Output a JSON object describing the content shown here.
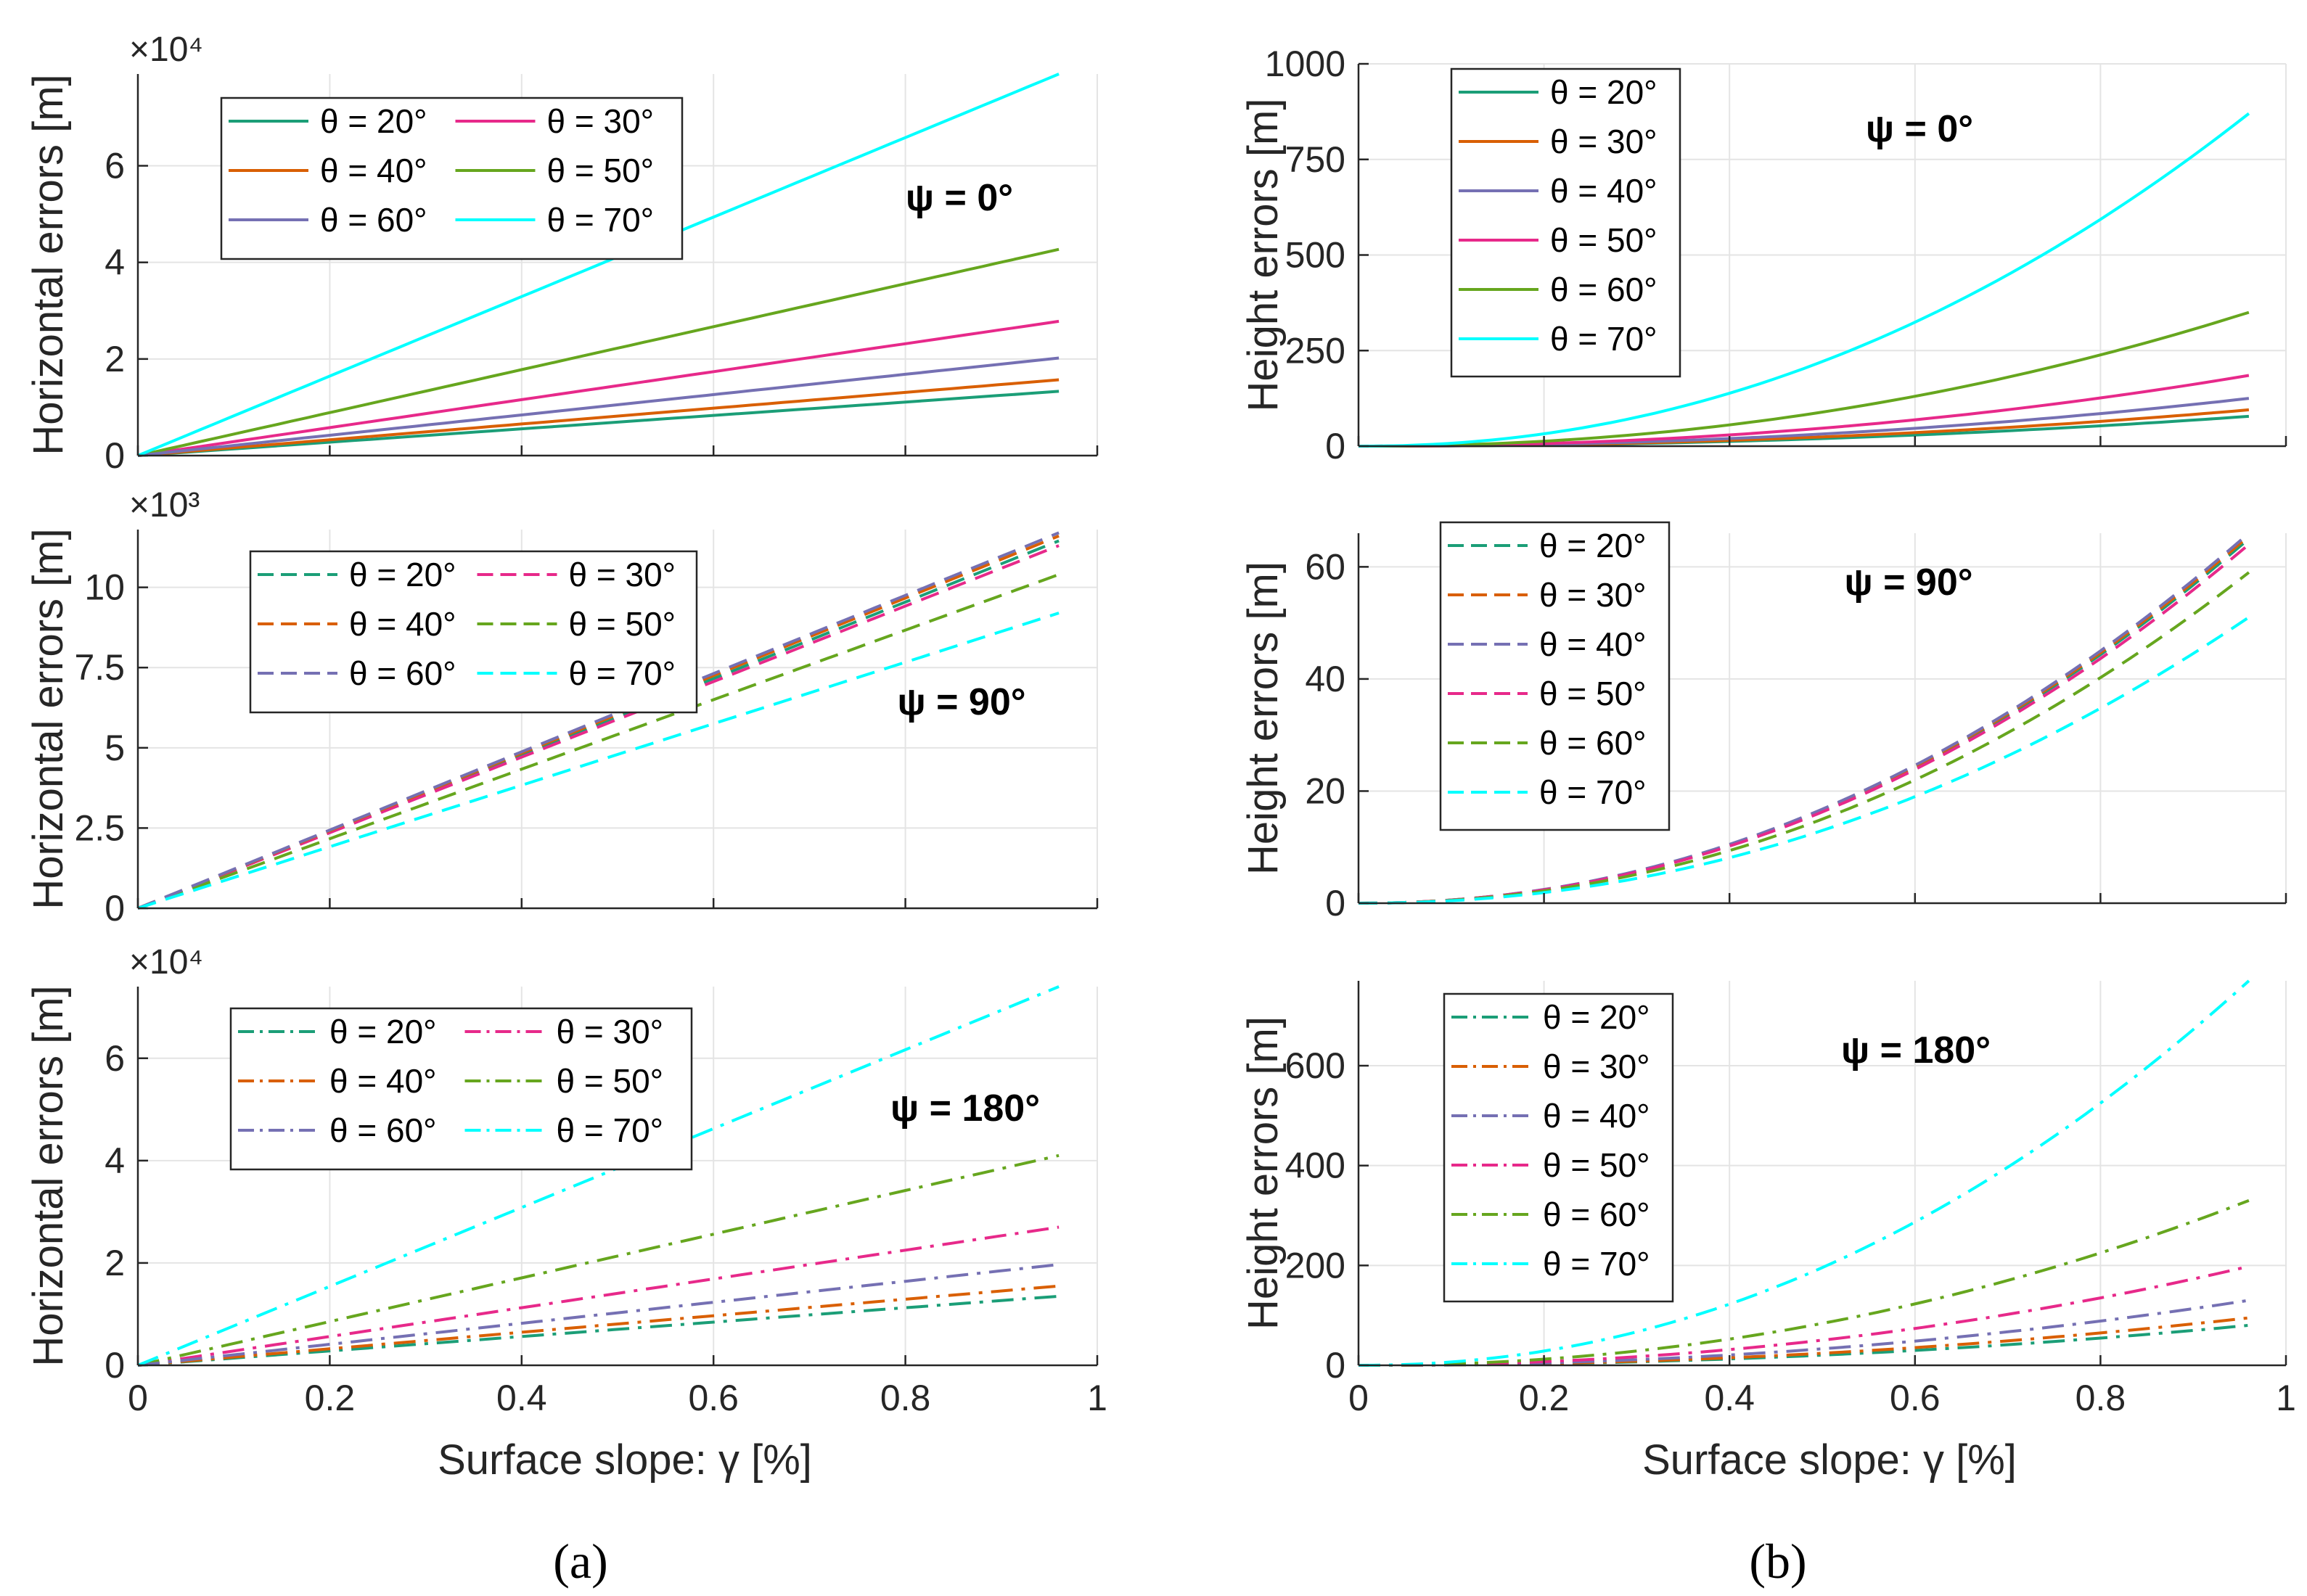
{
  "panel_labels": {
    "a": "(a)",
    "b": "(b)"
  },
  "chart_data": [
    {
      "id": "a-psi0",
      "type": "line",
      "line_style": "solid",
      "annotation": "ψ = 0°",
      "ylabel": "Horizontal errors [m]",
      "xlabel": "",
      "multiplier_label": "×10⁴",
      "xlim": [
        0,
        1
      ],
      "ylim": [
        0,
        7.9
      ],
      "xticks": [
        0,
        0.2,
        0.4,
        0.6,
        0.8,
        1
      ],
      "xtick_labels": [
        "",
        "",
        "",
        "",
        "",
        ""
      ],
      "yticks": [
        0,
        2,
        4,
        6
      ],
      "ytick_labels": [
        "0",
        "2",
        "4",
        "6"
      ],
      "grid": true,
      "legend_cols": 2,
      "series": [
        {
          "name": "θ = 20°",
          "color": "#1b9e77",
          "endpoint": [
            0.96,
            1.33
          ],
          "curve": "linear"
        },
        {
          "name": "θ = 30°",
          "color": "#e7298a",
          "endpoint": [
            0.96,
            2.78
          ],
          "curve": "linear"
        },
        {
          "name": "θ = 40°",
          "color": "#d95f02",
          "endpoint": [
            0.96,
            1.57
          ],
          "curve": "linear"
        },
        {
          "name": "θ = 50°",
          "color": "#66a61e",
          "endpoint": [
            0.96,
            4.27
          ],
          "curve": "linear"
        },
        {
          "name": "θ = 60°",
          "color": "#7570b3",
          "endpoint": [
            0.96,
            2.02
          ],
          "curve": "linear"
        },
        {
          "name": "θ = 70°",
          "color": "#00ffff",
          "endpoint": [
            0.96,
            7.9
          ],
          "curve": "linear"
        }
      ]
    },
    {
      "id": "b-psi0",
      "type": "line",
      "line_style": "solid",
      "annotation": "ψ = 0°",
      "ylabel": "Height errors [m]",
      "xlabel": "",
      "multiplier_label": "",
      "xlim": [
        0,
        1
      ],
      "ylim": [
        0,
        1000
      ],
      "xticks": [
        0,
        0.2,
        0.4,
        0.6,
        0.8,
        1
      ],
      "xtick_labels": [
        "",
        "",
        "",
        "",
        "",
        ""
      ],
      "yticks": [
        0,
        250,
        500,
        750,
        1000
      ],
      "ytick_labels": [
        "0",
        "250",
        "500",
        "750",
        "1000"
      ],
      "grid": true,
      "legend_cols": 1,
      "series": [
        {
          "name": "θ = 20°",
          "color": "#1b9e77",
          "endpoint": [
            0.96,
            78
          ],
          "curve": "quadratic"
        },
        {
          "name": "θ = 30°",
          "color": "#d95f02",
          "endpoint": [
            0.96,
            95
          ],
          "curve": "quadratic"
        },
        {
          "name": "θ = 40°",
          "color": "#7570b3",
          "endpoint": [
            0.96,
            125
          ],
          "curve": "quadratic"
        },
        {
          "name": "θ = 50°",
          "color": "#e7298a",
          "endpoint": [
            0.96,
            185
          ],
          "curve": "quadratic"
        },
        {
          "name": "θ = 60°",
          "color": "#66a61e",
          "endpoint": [
            0.96,
            350
          ],
          "curve": "quadratic"
        },
        {
          "name": "θ = 70°",
          "color": "#00ffff",
          "endpoint": [
            0.96,
            870
          ],
          "curve": "quadratic"
        }
      ]
    },
    {
      "id": "a-psi90",
      "type": "line",
      "line_style": "dashed",
      "annotation": "ψ = 90°",
      "ylabel": "Horizontal errors [m]",
      "xlabel": "",
      "multiplier_label": "×10³",
      "xlim": [
        0,
        1
      ],
      "ylim": [
        0,
        11.8
      ],
      "xticks": [
        0,
        0.2,
        0.4,
        0.6,
        0.8,
        1
      ],
      "xtick_labels": [
        "",
        "",
        "",
        "",
        "",
        ""
      ],
      "yticks": [
        0,
        2.5,
        5,
        7.5,
        10
      ],
      "ytick_labels": [
        "0",
        "2.5",
        "5",
        "7.5",
        "10"
      ],
      "grid": true,
      "legend_cols": 2,
      "series": [
        {
          "name": "θ = 20°",
          "color": "#1b9e77",
          "endpoint": [
            0.96,
            11.45
          ],
          "curve": "linear"
        },
        {
          "name": "θ = 30°",
          "color": "#e7298a",
          "endpoint": [
            0.96,
            11.3
          ],
          "curve": "linear"
        },
        {
          "name": "θ = 40°",
          "color": "#d95f02",
          "endpoint": [
            0.96,
            11.6
          ],
          "curve": "linear"
        },
        {
          "name": "θ = 50°",
          "color": "#66a61e",
          "endpoint": [
            0.96,
            10.4
          ],
          "curve": "linear"
        },
        {
          "name": "θ = 60°",
          "color": "#7570b3",
          "endpoint": [
            0.96,
            11.7
          ],
          "curve": "linear"
        },
        {
          "name": "θ = 70°",
          "color": "#00ffff",
          "endpoint": [
            0.96,
            9.2
          ],
          "curve": "linear"
        }
      ]
    },
    {
      "id": "b-psi90",
      "type": "line",
      "line_style": "dashed",
      "annotation": "ψ = 90°",
      "ylabel": "Height errors [m]",
      "xlabel": "",
      "multiplier_label": "",
      "xlim": [
        0,
        1
      ],
      "ylim": [
        0,
        66
      ],
      "xticks": [
        0,
        0.2,
        0.4,
        0.6,
        0.8,
        1
      ],
      "xtick_labels": [
        "",
        "",
        "",
        "",
        "",
        ""
      ],
      "yticks": [
        0,
        20,
        40,
        60
      ],
      "ytick_labels": [
        "0",
        "20",
        "40",
        "60"
      ],
      "grid": true,
      "legend_cols": 1,
      "series": [
        {
          "name": "θ = 20°",
          "color": "#1b9e77",
          "endpoint": [
            0.96,
            65
          ],
          "curve": "quadratic"
        },
        {
          "name": "θ = 30°",
          "color": "#d95f02",
          "endpoint": [
            0.96,
            65.5
          ],
          "curve": "quadratic"
        },
        {
          "name": "θ = 40°",
          "color": "#7570b3",
          "endpoint": [
            0.96,
            66
          ],
          "curve": "quadratic"
        },
        {
          "name": "θ = 50°",
          "color": "#e7298a",
          "endpoint": [
            0.96,
            64
          ],
          "curve": "quadratic"
        },
        {
          "name": "θ = 60°",
          "color": "#66a61e",
          "endpoint": [
            0.96,
            59
          ],
          "curve": "quadratic"
        },
        {
          "name": "θ = 70°",
          "color": "#00ffff",
          "endpoint": [
            0.96,
            51
          ],
          "curve": "quadratic"
        }
      ]
    },
    {
      "id": "a-psi180",
      "type": "line",
      "line_style": "dashdot",
      "annotation": "ψ = 180°",
      "ylabel": "Horizontal errors [m]",
      "xlabel": "Surface slope: γ [%]",
      "multiplier_label": "×10⁴",
      "xlim": [
        0,
        1
      ],
      "ylim": [
        0,
        7.4
      ],
      "xticks": [
        0,
        0.2,
        0.4,
        0.6,
        0.8,
        1
      ],
      "xtick_labels": [
        "0",
        "0.2",
        "0.4",
        "0.6",
        "0.8",
        "1"
      ],
      "yticks": [
        0,
        2,
        4,
        6
      ],
      "ytick_labels": [
        "0",
        "2",
        "4",
        "6"
      ],
      "grid": true,
      "legend_cols": 2,
      "series": [
        {
          "name": "θ = 20°",
          "color": "#1b9e77",
          "endpoint": [
            0.96,
            1.35
          ],
          "curve": "linear"
        },
        {
          "name": "θ = 30°",
          "color": "#e7298a",
          "endpoint": [
            0.96,
            2.7
          ],
          "curve": "linear"
        },
        {
          "name": "θ = 40°",
          "color": "#d95f02",
          "endpoint": [
            0.96,
            1.55
          ],
          "curve": "linear"
        },
        {
          "name": "θ = 50°",
          "color": "#66a61e",
          "endpoint": [
            0.96,
            4.1
          ],
          "curve": "linear"
        },
        {
          "name": "θ = 60°",
          "color": "#7570b3",
          "endpoint": [
            0.96,
            1.97
          ],
          "curve": "linear"
        },
        {
          "name": "θ = 70°",
          "color": "#00ffff",
          "endpoint": [
            0.96,
            7.4
          ],
          "curve": "linear"
        }
      ]
    },
    {
      "id": "b-psi180",
      "type": "line",
      "line_style": "dashdot",
      "annotation": "ψ = 180°",
      "ylabel": "Height errors [m]",
      "xlabel": "Surface slope: γ [%]",
      "multiplier_label": "",
      "xlim": [
        0,
        1
      ],
      "ylim": [
        0,
        770
      ],
      "xticks": [
        0,
        0.2,
        0.4,
        0.6,
        0.8,
        1
      ],
      "xtick_labels": [
        "0",
        "0.2",
        "0.4",
        "0.6",
        "0.8",
        "1"
      ],
      "yticks": [
        0,
        200,
        400,
        600
      ],
      "ytick_labels": [
        "0",
        "200",
        "400",
        "600"
      ],
      "grid": true,
      "legend_cols": 1,
      "series": [
        {
          "name": "θ = 20°",
          "color": "#1b9e77",
          "endpoint": [
            0.96,
            80
          ],
          "curve": "quadratic"
        },
        {
          "name": "θ = 30°",
          "color": "#d95f02",
          "endpoint": [
            0.96,
            95
          ],
          "curve": "quadratic"
        },
        {
          "name": "θ = 40°",
          "color": "#7570b3",
          "endpoint": [
            0.96,
            130
          ],
          "curve": "quadratic"
        },
        {
          "name": "θ = 50°",
          "color": "#e7298a",
          "endpoint": [
            0.96,
            198
          ],
          "curve": "quadratic"
        },
        {
          "name": "θ = 60°",
          "color": "#66a61e",
          "endpoint": [
            0.96,
            330
          ],
          "curve": "quadratic"
        },
        {
          "name": "θ = 70°",
          "color": "#00ffff",
          "endpoint": [
            0.96,
            770
          ],
          "curve": "quadratic"
        }
      ]
    }
  ]
}
